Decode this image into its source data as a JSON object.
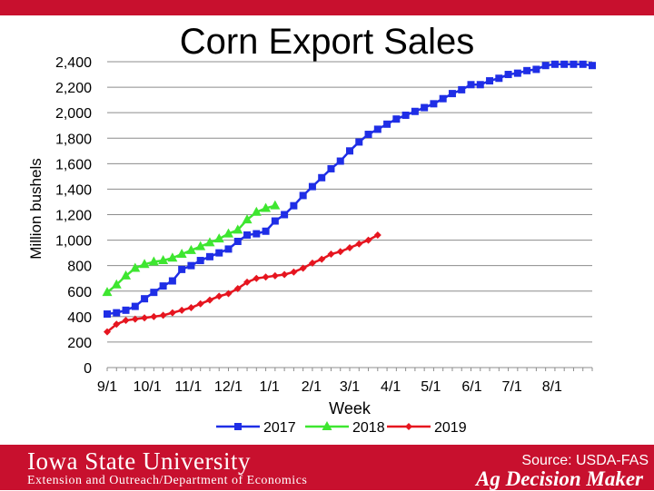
{
  "header": {
    "title": "Corn Export Sales"
  },
  "footer": {
    "university": "Iowa State University",
    "department": "Extension and Outreach/Department of Economics",
    "source": "Source: USDA-FAS",
    "brand": "Ag Decision Maker"
  },
  "colors": {
    "accent_red": "#c8102e",
    "series_2017": "#1f2ee6",
    "series_2018": "#3ee630",
    "series_2019": "#e6151f"
  },
  "chart_data": {
    "type": "line",
    "title": "Corn Export Sales",
    "xlabel": "Week",
    "ylabel": "Million bushels",
    "ylim": [
      0,
      2400
    ],
    "yticks": [
      "0",
      "200",
      "400",
      "600",
      "800",
      "1,000",
      "1,200",
      "1,400",
      "1,600",
      "1,800",
      "2,000",
      "2,200",
      "2,400"
    ],
    "ytick_values": [
      0,
      200,
      400,
      600,
      800,
      1000,
      1200,
      1400,
      1600,
      1800,
      2000,
      2200,
      2400
    ],
    "xlim": [
      0,
      52
    ],
    "xticks": [
      "9/1",
      "10/1",
      "11/1",
      "12/1",
      "1/1",
      "2/1",
      "3/1",
      "4/1",
      "5/1",
      "6/1",
      "7/1",
      "8/1"
    ],
    "xtick_weeks": [
      0,
      4.3,
      8.7,
      13,
      17.4,
      21.9,
      26,
      30.4,
      34.7,
      39.1,
      43.4,
      47.7
    ],
    "grid": true,
    "legend_position": "bottom",
    "series": [
      {
        "name": "2017",
        "marker": "square",
        "values": [
          420,
          430,
          450,
          480,
          540,
          590,
          640,
          680,
          770,
          800,
          840,
          870,
          900,
          930,
          990,
          1040,
          1050,
          1070,
          1150,
          1200,
          1270,
          1350,
          1420,
          1490,
          1560,
          1620,
          1700,
          1770,
          1830,
          1870,
          1910,
          1950,
          1980,
          2010,
          2040,
          2070,
          2110,
          2150,
          2180,
          2220,
          2220,
          2250,
          2270,
          2300,
          2310,
          2330,
          2340,
          2370,
          2380,
          2380,
          2380,
          2380,
          2370
        ]
      },
      {
        "name": "2018",
        "marker": "triangle",
        "values": [
          590,
          650,
          720,
          780,
          810,
          830,
          840,
          860,
          890,
          920,
          950,
          980,
          1010,
          1050,
          1080,
          1160,
          1220,
          1250,
          1270
        ]
      },
      {
        "name": "2019",
        "marker": "diamond",
        "values": [
          280,
          340,
          370,
          380,
          390,
          400,
          410,
          430,
          450,
          470,
          500,
          530,
          560,
          580,
          620,
          670,
          700,
          710,
          720,
          730,
          750,
          780,
          820,
          850,
          890,
          910,
          940,
          970,
          1000,
          1040
        ]
      }
    ]
  }
}
